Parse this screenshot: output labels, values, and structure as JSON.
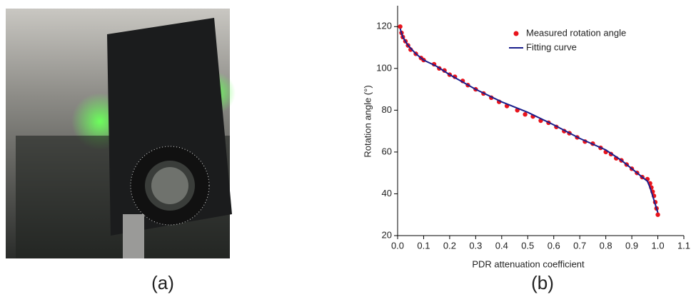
{
  "photo_label": "(a)",
  "chart_data": {
    "type": "scatter",
    "panel_label": "(b)",
    "xlabel": "PDR attenuation coefficient",
    "ylabel": "Rotation angle (°)",
    "xlim": [
      0,
      1.1
    ],
    "xticks": [
      {
        "value": 0,
        "label": "0.0"
      },
      0.1,
      0.2,
      0.3,
      0.4,
      0.5,
      0.6,
      0.7,
      0.8,
      0.9,
      {
        "value": 1,
        "label": "1.0"
      },
      1.1
    ],
    "ylim": [
      20,
      130
    ],
    "yticks": [
      20,
      40,
      60,
      80,
      100,
      120
    ],
    "legend": "top-right",
    "series": [
      {
        "name": "Measured rotation angle",
        "color": "#e8141c",
        "mode": "markers",
        "x": [
          0.01,
          0.015,
          0.02,
          0.03,
          0.04,
          0.05,
          0.07,
          0.09,
          0.1,
          0.14,
          0.16,
          0.18,
          0.2,
          0.22,
          0.25,
          0.27,
          0.3,
          0.33,
          0.36,
          0.39,
          0.42,
          0.46,
          0.49,
          0.52,
          0.55,
          0.58,
          0.61,
          0.64,
          0.66,
          0.69,
          0.72,
          0.75,
          0.78,
          0.8,
          0.82,
          0.84,
          0.86,
          0.88,
          0.9,
          0.92,
          0.94,
          0.96,
          0.97,
          0.975,
          0.98,
          0.985,
          0.99,
          0.995,
          1.0
        ],
        "values": [
          120,
          117,
          115,
          113,
          111,
          109,
          107,
          105,
          104,
          102,
          100,
          99,
          97,
          96,
          94,
          92,
          90,
          88,
          86,
          84,
          82,
          80,
          78,
          77,
          75,
          74,
          72,
          70,
          69,
          67,
          65,
          64,
          62,
          60,
          59,
          57,
          56,
          54,
          52,
          50,
          48,
          47,
          45,
          43,
          41,
          39,
          36,
          33,
          30
        ]
      },
      {
        "name": "Fitting curve",
        "color": "#1a1f8c",
        "mode": "line",
        "x": [
          0.01,
          0.02,
          0.04,
          0.07,
          0.1,
          0.15,
          0.2,
          0.3,
          0.4,
          0.5,
          0.6,
          0.7,
          0.8,
          0.86,
          0.9,
          0.94,
          0.96,
          0.97,
          0.98,
          0.99,
          1.0
        ],
        "values": [
          119,
          115,
          111,
          107,
          104,
          101,
          97,
          90,
          84,
          79,
          73,
          66.5,
          61,
          56,
          52,
          48,
          46,
          43,
          39,
          35,
          31
        ]
      }
    ]
  }
}
